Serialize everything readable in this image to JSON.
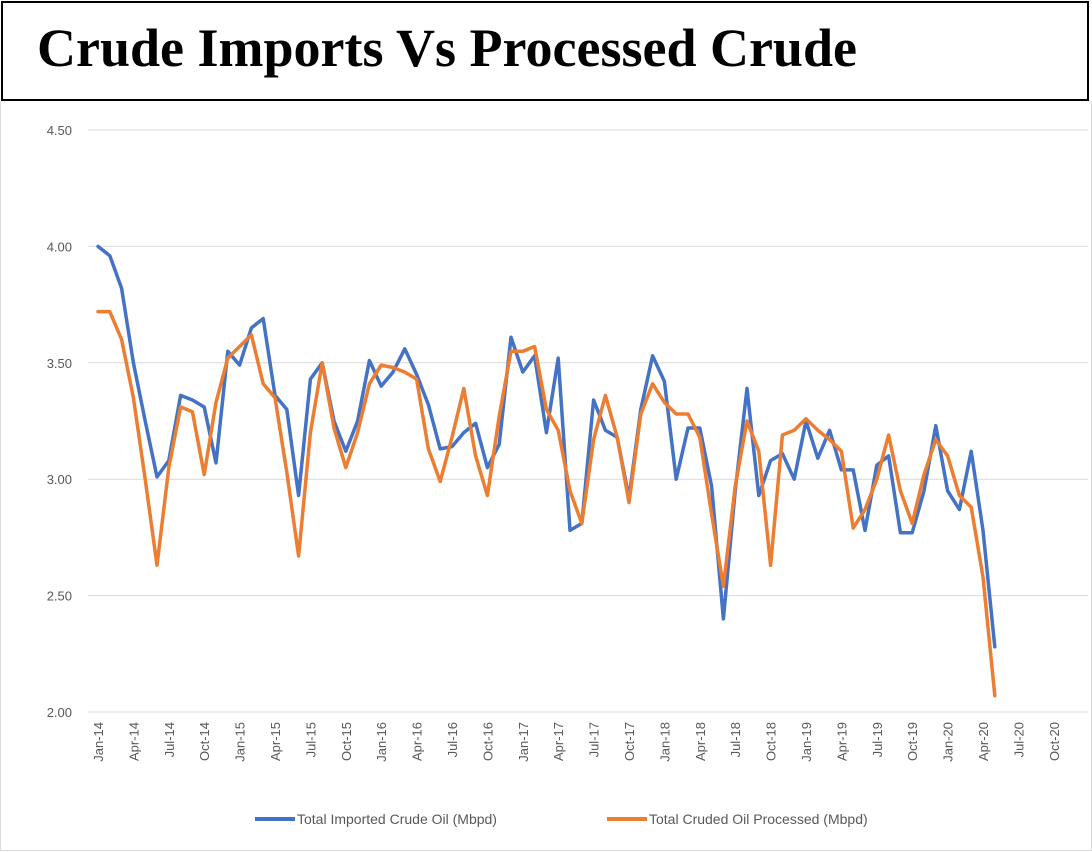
{
  "chart_data": {
    "type": "line",
    "title": "Crude Imports Vs Processed Crude",
    "xlabel": "",
    "ylabel": "",
    "ylim": [
      2.0,
      4.5
    ],
    "yticks": [
      "4.50",
      "4.00",
      "3.50",
      "3.00",
      "2.50",
      "2.00"
    ],
    "ytick_values": [
      4.5,
      4.0,
      3.5,
      3.0,
      2.5,
      2.0
    ],
    "xticks": [
      "Jan-14",
      "Apr-14",
      "Jul-14",
      "Oct-14",
      "Jan-15",
      "Apr-15",
      "Jul-15",
      "Oct-15",
      "Jan-16",
      "Apr-16",
      "Jul-16",
      "Oct-16",
      "Jan-17",
      "Apr-17",
      "Jul-17",
      "Oct-17",
      "Jan-18",
      "Apr-18",
      "Jul-18",
      "Oct-18",
      "Jan-19",
      "Apr-19",
      "Jul-19",
      "Oct-19",
      "Jan-20",
      "Apr-20",
      "Jul-20",
      "Oct-20"
    ],
    "x_start": "Jan-14",
    "x_interval": "monthly",
    "grid": true,
    "legend_position": "bottom",
    "series": [
      {
        "name": "Total Imported Crude Oil (Mbpd)",
        "color": "#4472C4",
        "values": [
          4.0,
          3.96,
          3.82,
          3.5,
          3.25,
          3.01,
          3.08,
          3.36,
          3.34,
          3.31,
          3.07,
          3.55,
          3.49,
          3.65,
          3.69,
          3.36,
          3.3,
          2.93,
          3.43,
          3.5,
          3.25,
          3.12,
          3.25,
          3.51,
          3.4,
          3.46,
          3.56,
          3.45,
          3.32,
          3.13,
          3.14,
          3.2,
          3.24,
          3.05,
          3.15,
          3.61,
          3.46,
          3.53,
          3.2,
          3.52,
          2.78,
          2.81,
          3.34,
          3.21,
          3.18,
          2.92,
          3.3,
          3.53,
          3.42,
          3.0,
          3.22,
          3.22,
          2.97,
          2.4,
          2.95,
          3.39,
          2.93,
          3.08,
          3.11,
          3.0,
          3.25,
          3.09,
          3.21,
          3.04,
          3.04,
          2.78,
          3.06,
          3.1,
          2.77,
          2.77,
          2.95,
          3.23,
          2.95,
          2.87,
          3.12,
          2.78,
          2.28
        ]
      },
      {
        "name": "Total Cruded Oil Processed (Mbpd)",
        "color": "#ED7D31",
        "values": [
          3.72,
          3.72,
          3.6,
          3.35,
          3.0,
          2.63,
          3.05,
          3.31,
          3.29,
          3.02,
          3.33,
          3.52,
          3.57,
          3.62,
          3.41,
          3.35,
          3.03,
          2.67,
          3.2,
          3.5,
          3.22,
          3.05,
          3.2,
          3.41,
          3.49,
          3.48,
          3.46,
          3.43,
          3.13,
          2.99,
          3.18,
          3.39,
          3.1,
          2.93,
          3.27,
          3.55,
          3.55,
          3.57,
          3.3,
          3.21,
          2.95,
          2.81,
          3.17,
          3.36,
          3.18,
          2.9,
          3.28,
          3.41,
          3.33,
          3.28,
          3.28,
          3.18,
          2.85,
          2.54,
          2.97,
          3.25,
          3.12,
          2.63,
          3.19,
          3.21,
          3.26,
          3.21,
          3.17,
          3.12,
          2.79,
          2.87,
          3.0,
          3.19,
          2.95,
          2.81,
          3.02,
          3.17,
          3.1,
          2.93,
          2.88,
          2.58,
          2.07
        ]
      }
    ]
  }
}
